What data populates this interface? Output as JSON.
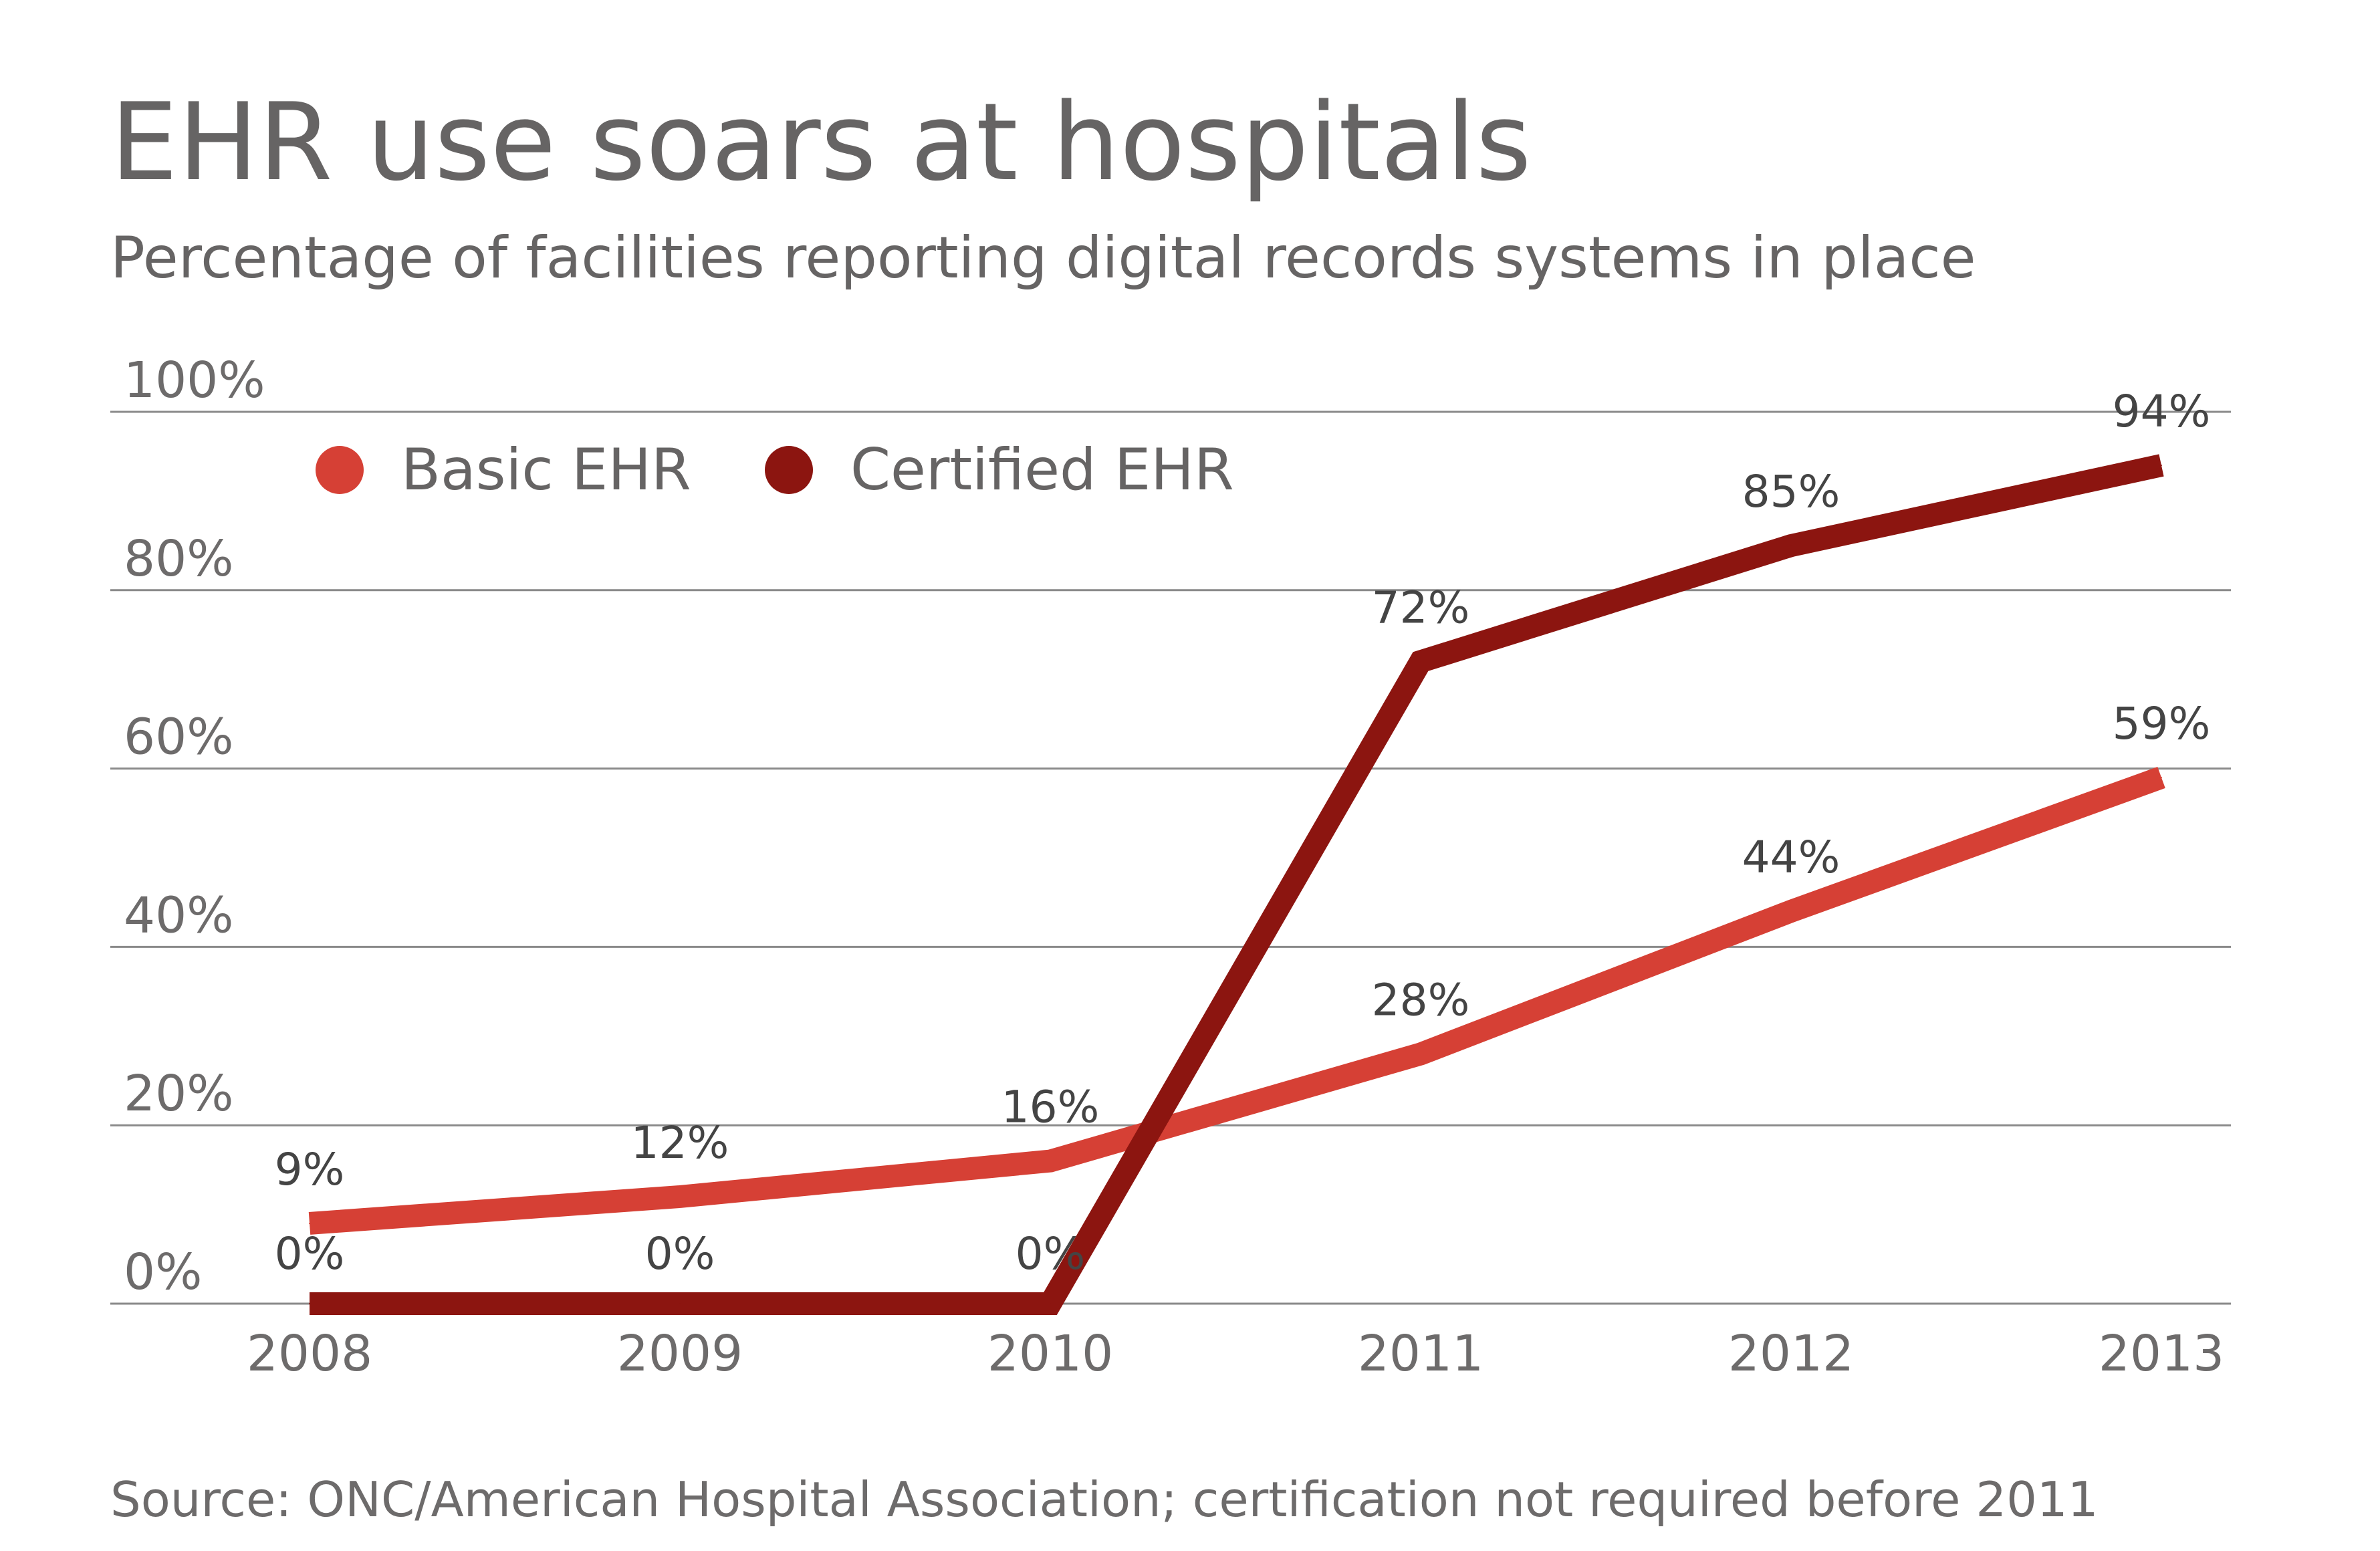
{
  "chart_data": {
    "type": "line",
    "title": "EHR use soars at hospitals",
    "subtitle": "Percentage of facilities reporting digital records systems in place",
    "source": "Source: ONC/American Hospital Association; certification not required before 2011",
    "categories": [
      "2008",
      "2009",
      "2010",
      "2011",
      "2012",
      "2013"
    ],
    "ylim": [
      0,
      100
    ],
    "yticks": [
      0,
      20,
      40,
      60,
      80,
      100
    ],
    "ytick_labels": [
      "0%",
      "20%",
      "40%",
      "60%",
      "80%",
      "100%"
    ],
    "grid": true,
    "legend_position": "top-left",
    "series": [
      {
        "name": "Basic EHR",
        "color": "#D64035",
        "values": [
          9,
          12,
          16,
          28,
          44,
          59
        ],
        "labels": [
          "9%",
          "12%",
          "16%",
          "28%",
          "44%",
          "59%"
        ]
      },
      {
        "name": "Certified EHR",
        "color": "#8C1510",
        "values": [
          0,
          0,
          0,
          72,
          85,
          94
        ],
        "labels": [
          "0%",
          "0%",
          "0%",
          "72%",
          "85%",
          "94%"
        ]
      }
    ]
  }
}
